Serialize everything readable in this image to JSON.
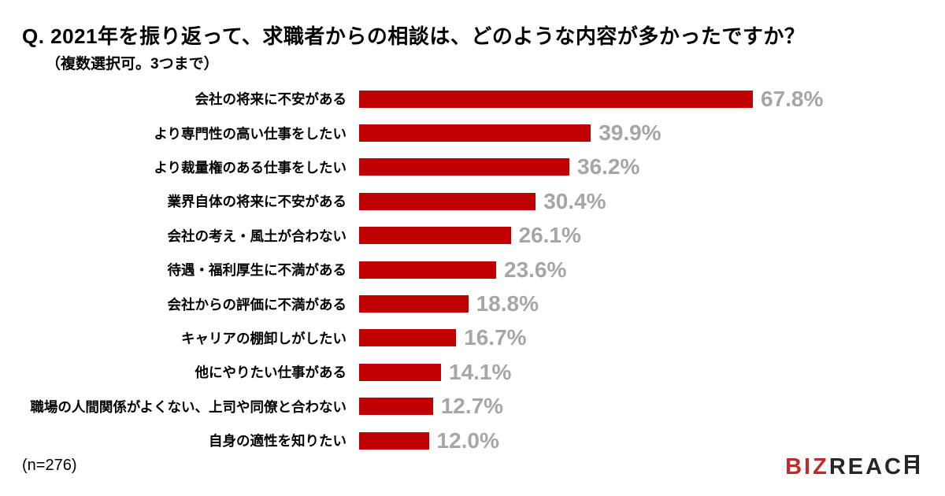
{
  "header": {
    "title": "Q. 2021年を振り返って、求職者からの相談は、どのような内容が多かったですか？",
    "subtitle": "（複数選択可。3つまで）"
  },
  "chart_data": {
    "type": "bar",
    "orientation": "horizontal",
    "title": "2021年を振り返って、求職者からの相談は、どのような内容が多かったですか？（複数選択可。3つまで）",
    "categories": [
      "会社の将来に不安がある",
      "より専門性の高い仕事をしたい",
      "より裁量権のある仕事をしたい",
      "業界自体の将来に不安がある",
      "会社の考え・風土が合わない",
      "待遇・福利厚生に不満がある",
      "会社からの評価に不満がある",
      "キャリアの棚卸しがしたい",
      "他にやりたい仕事がある",
      "職場の人間関係がよくない、上司や同僚と合わない",
      "自身の適性を知りたい"
    ],
    "values": [
      67.8,
      39.9,
      36.2,
      30.4,
      26.1,
      23.6,
      18.8,
      16.7,
      14.1,
      12.7,
      12.0
    ],
    "value_suffix": "%",
    "value_decimals": 1,
    "xlim": [
      0,
      75
    ],
    "grid": false,
    "legend": false,
    "bar_color": "#c00000",
    "value_label_color": "#a6a6a6"
  },
  "footer": {
    "sample_note": "(n=276)",
    "logo": {
      "part_red": "BIZ",
      "part_dark": "REAC",
      "last_letter": "H",
      "style_note": "final H drawn as ladder glyph"
    }
  },
  "colors": {
    "background": "#ffffff",
    "bar": "#c00000",
    "value_label": "#a6a6a6",
    "text": "#000000",
    "logo_red": "#bf2a2c",
    "logo_dark": "#26262a"
  }
}
